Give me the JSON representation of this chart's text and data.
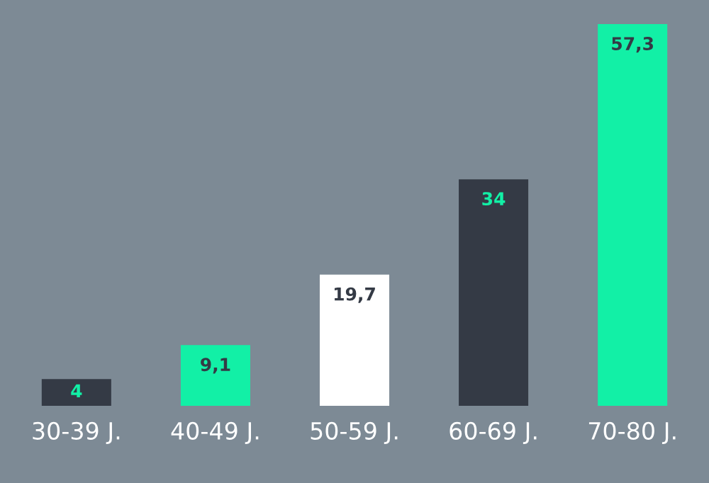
{
  "chart_data": {
    "type": "bar",
    "categories": [
      "30-39 J.",
      "40-49 J.",
      "50-59 J.",
      "60-69 J.",
      "70-80 J."
    ],
    "values": [
      4,
      9.1,
      19.7,
      34,
      57.3
    ],
    "colors": [
      "#343a45",
      "#12f0a6",
      "#ffffff",
      "#343a45",
      "#12f0a6"
    ],
    "value_labels": [
      "4",
      "9,1",
      "19,7",
      "34",
      "57,3"
    ],
    "grid": false,
    "legend": false
  }
}
